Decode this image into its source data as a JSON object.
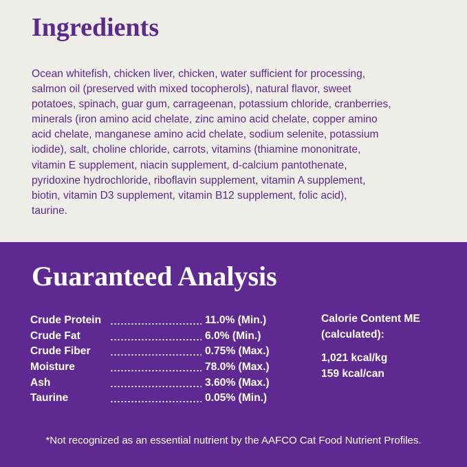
{
  "ingredients": {
    "title": "Ingredients",
    "lines": [
      "Ocean whitefish, chicken liver, chicken, water sufficient for processing,",
      "salmon oil (preserved with mixed tocopherols), natural flavor, sweet",
      "potatoes, spinach, guar gum, carrageenan, potassium chloride, cranberries,",
      "minerals (iron amino acid chelate, zinc amino acid chelate, copper amino",
      "acid chelate, manganese amino acid chelate, sodium selenite, potassium",
      "iodide), salt, choline chloride, carrots, vitamins (thiamine mononitrate,",
      "vitamin E supplement, niacin supplement, d-calcium pantothenate,",
      "pyridoxine hydrochloride, riboflavin supplement, vitamin A supplement,",
      "biotin, vitamin D3 supplement, vitamin B12 supplement, folic acid),",
      "taurine."
    ]
  },
  "analysis": {
    "title": "Guaranteed Analysis",
    "rows": [
      [
        "Crude Protein",
        "11.0% (Min.)"
      ],
      [
        "Crude Fat",
        "6.0% (Min.)"
      ],
      [
        "Crude Fiber",
        "0.75% (Max.)"
      ],
      [
        "Moisture",
        "78.0% (Max.)"
      ],
      [
        "Ash",
        "3.60% (Max.)"
      ],
      [
        "Taurine",
        "0.05% (Min.)"
      ]
    ],
    "calorie_label": [
      "Calorie Content ME",
      "(calculated):"
    ],
    "calorie_values": [
      "1,021 kcal/kg",
      "159 kcal/can"
    ],
    "footnote": "*Not recognized as an essential nutrient by the AAFCO Cat Food Nutrient Profiles."
  }
}
